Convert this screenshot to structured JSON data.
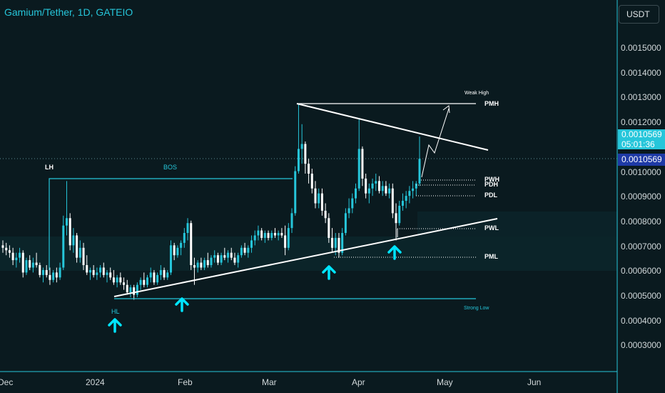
{
  "header": {
    "title": "Gamium/Tether, 1D, GATEIO",
    "currency": "USDT"
  },
  "price_axis": [
    "0.0015000",
    "0.0014000",
    "0.0013000",
    "0.0012000",
    "0.0010000",
    "0.0009000",
    "0.0008000",
    "0.0007000",
    "0.0006000",
    "0.0005000",
    "0.0004000",
    "0.0003000"
  ],
  "time_axis": [
    "Dec",
    "2024",
    "Feb",
    "Mar",
    "Apr",
    "May",
    "Jun"
  ],
  "badges": {
    "last_price": "0.0010569",
    "countdown": "05:01:36",
    "crosshair_price": "0.0010569"
  },
  "annotations": {
    "lh": "LH",
    "bos": "BOS",
    "hl": "HL",
    "weak_high": "Weak High",
    "pmh": "PMH",
    "pwh": "PWH",
    "pdh": "PDH",
    "pdl": "PDL",
    "pwl": "PWL",
    "pml": "PML",
    "strong_low": "Strong Low"
  },
  "colors": {
    "background": "#0a1a1f",
    "up": "#26c6da",
    "down": "#ffffff",
    "accent": "#26c6da",
    "arrow": "#00e5ff",
    "zone": "#0d2d32"
  },
  "chart_data": {
    "type": "candlestick",
    "symbol": "Gamium/Tether",
    "timeframe": "1D",
    "exchange": "GATEIO",
    "ylim": [
      0.00025,
      0.0016
    ],
    "x_range": [
      "2023-12-01",
      "2024-06-16"
    ],
    "last_price": 0.0010569,
    "levels": [
      {
        "label": "PMH",
        "value": 0.00128
      },
      {
        "label": "PWH",
        "value": 0.00098
      },
      {
        "label": "PDH",
        "value": 0.000965
      },
      {
        "label": "PDL",
        "value": 0.000905
      },
      {
        "label": "PWL",
        "value": 0.00078
      },
      {
        "label": "PML",
        "value": 0.00066
      },
      {
        "label": "Strong Low",
        "value": 0.00049
      },
      {
        "label": "LH",
        "value": 0.00097
      }
    ],
    "candles_ohlc": [
      [
        0.00071,
        0.00073,
        0.00068,
        0.0007
      ],
      [
        0.0007,
        0.00072,
        0.00067,
        0.00069
      ],
      [
        0.00069,
        0.00071,
        0.00066,
        0.00068
      ],
      [
        0.00068,
        0.0007,
        0.00063,
        0.00065
      ],
      [
        0.00065,
        0.00068,
        0.00062,
        0.00066
      ],
      [
        0.00066,
        0.0007,
        0.00064,
        0.00068
      ],
      [
        0.00068,
        0.00069,
        0.00058,
        0.0006
      ],
      [
        0.0006,
        0.00066,
        0.00059,
        0.00065
      ],
      [
        0.00065,
        0.00067,
        0.00061,
        0.00062
      ],
      [
        0.00062,
        0.00066,
        0.0006,
        0.00064
      ],
      [
        0.00064,
        0.00068,
        0.00062,
        0.00063
      ],
      [
        0.00063,
        0.00064,
        0.00058,
        0.00059
      ],
      [
        0.00059,
        0.00062,
        0.00056,
        0.00061
      ],
      [
        0.00061,
        0.00063,
        0.00058,
        0.00059
      ],
      [
        0.00059,
        0.00062,
        0.00055,
        0.00057
      ],
      [
        0.00057,
        0.00061,
        0.00056,
        0.0006
      ],
      [
        0.0006,
        0.00062,
        0.00056,
        0.00058
      ],
      [
        0.00058,
        0.00064,
        0.00057,
        0.00062
      ],
      [
        0.00062,
        0.00083,
        0.00061,
        0.00079
      ],
      [
        0.00079,
        0.00097,
        0.00075,
        0.00082
      ],
      [
        0.00082,
        0.00084,
        0.00069,
        0.00071
      ],
      [
        0.00071,
        0.00078,
        0.00068,
        0.00075
      ],
      [
        0.00075,
        0.00076,
        0.00064,
        0.00066
      ],
      [
        0.00066,
        0.00073,
        0.00064,
        0.0007
      ],
      [
        0.0007,
        0.00072,
        0.00061,
        0.00063
      ],
      [
        0.00063,
        0.00067,
        0.00059,
        0.0006
      ],
      [
        0.0006,
        0.00062,
        0.00057,
        0.00061
      ],
      [
        0.00061,
        0.00063,
        0.00058,
        0.00059
      ],
      [
        0.00059,
        0.00062,
        0.00057,
        0.0006
      ],
      [
        0.0006,
        0.00063,
        0.00058,
        0.00062
      ],
      [
        0.00062,
        0.00064,
        0.00058,
        0.00059
      ],
      [
        0.00059,
        0.00061,
        0.00056,
        0.0006
      ],
      [
        0.0006,
        0.00062,
        0.00057,
        0.00058
      ],
      [
        0.00058,
        0.00061,
        0.00055,
        0.00056
      ],
      [
        0.00056,
        0.00059,
        0.00054,
        0.00058
      ],
      [
        0.00058,
        0.0006,
        0.00055,
        0.00056
      ],
      [
        0.00056,
        0.00058,
        0.00053,
        0.00055
      ],
      [
        0.00055,
        0.00057,
        0.00051,
        0.00052
      ],
      [
        0.00052,
        0.00055,
        0.0005,
        0.00054
      ],
      [
        0.00054,
        0.00055,
        0.00049,
        0.00051
      ],
      [
        0.00051,
        0.00056,
        0.0005,
        0.00055
      ],
      [
        0.00055,
        0.00058,
        0.00053,
        0.00057
      ],
      [
        0.00057,
        0.0006,
        0.00054,
        0.00055
      ],
      [
        0.00055,
        0.00059,
        0.00054,
        0.00058
      ],
      [
        0.00058,
        0.00062,
        0.00056,
        0.0006
      ],
      [
        0.0006,
        0.00061,
        0.00055,
        0.00056
      ],
      [
        0.00056,
        0.0006,
        0.00055,
        0.00059
      ],
      [
        0.00059,
        0.00063,
        0.00057,
        0.00061
      ],
      [
        0.00061,
        0.00062,
        0.00057,
        0.00058
      ],
      [
        0.00058,
        0.00061,
        0.00057,
        0.0006
      ],
      [
        0.0006,
        0.00073,
        0.00059,
        0.00071
      ],
      [
        0.00071,
        0.00072,
        0.00065,
        0.00067
      ],
      [
        0.00067,
        0.00071,
        0.00066,
        0.0007
      ],
      [
        0.0007,
        0.00073,
        0.00067,
        0.00072
      ],
      [
        0.00072,
        0.00078,
        0.0007,
        0.00076
      ],
      [
        0.00076,
        0.00082,
        0.00073,
        0.0008
      ],
      [
        0.0008,
        0.00081,
        0.00061,
        0.00063
      ],
      [
        0.00063,
        0.00066,
        0.00055,
        0.00062
      ],
      [
        0.00062,
        0.00065,
        0.0006,
        0.00064
      ],
      [
        0.00064,
        0.00066,
        0.00061,
        0.00062
      ],
      [
        0.00062,
        0.00066,
        0.00061,
        0.00065
      ],
      [
        0.00065,
        0.00068,
        0.00062,
        0.00063
      ],
      [
        0.00063,
        0.00067,
        0.00062,
        0.00066
      ],
      [
        0.00066,
        0.00069,
        0.00064,
        0.00067
      ],
      [
        0.00067,
        0.00068,
        0.00063,
        0.00064
      ],
      [
        0.00064,
        0.00068,
        0.00063,
        0.00067
      ],
      [
        0.00067,
        0.0007,
        0.00065,
        0.00066
      ],
      [
        0.00066,
        0.00069,
        0.00064,
        0.00068
      ],
      [
        0.00068,
        0.0007,
        0.00065,
        0.00066
      ],
      [
        0.00066,
        0.00068,
        0.00063,
        0.00064
      ],
      [
        0.00064,
        0.00068,
        0.00062,
        0.00067
      ],
      [
        0.00067,
        0.00071,
        0.00066,
        0.0007
      ],
      [
        0.0007,
        0.00072,
        0.00067,
        0.00068
      ],
      [
        0.00068,
        0.00071,
        0.00066,
        0.0007
      ],
      [
        0.0007,
        0.00075,
        0.00068,
        0.00073
      ],
      [
        0.00073,
        0.00077,
        0.00071,
        0.00075
      ],
      [
        0.00075,
        0.00079,
        0.00073,
        0.00077
      ],
      [
        0.00077,
        0.00078,
        0.00073,
        0.00074
      ],
      [
        0.00074,
        0.00077,
        0.00072,
        0.00076
      ],
      [
        0.00076,
        0.00077,
        0.00073,
        0.00074
      ],
      [
        0.00074,
        0.00077,
        0.00073,
        0.00076
      ],
      [
        0.00076,
        0.00078,
        0.00074,
        0.00075
      ],
      [
        0.00075,
        0.00077,
        0.00073,
        0.00076
      ],
      [
        0.00076,
        0.00078,
        0.00074,
        0.00075
      ],
      [
        0.00075,
        0.00079,
        0.00067,
        0.0007
      ],
      [
        0.0007,
        0.0008,
        0.00069,
        0.00078
      ],
      [
        0.00078,
        0.00086,
        0.00076,
        0.00084
      ],
      [
        0.00084,
        0.00103,
        0.00083,
        0.00101
      ],
      [
        0.00101,
        0.00128,
        0.001,
        0.0011
      ],
      [
        0.0011,
        0.0012,
        0.00104,
        0.00112
      ],
      [
        0.00112,
        0.00113,
        0.001,
        0.00104
      ],
      [
        0.00104,
        0.00106,
        0.00096,
        0.001
      ],
      [
        0.001,
        0.00102,
        0.00092,
        0.00094
      ],
      [
        0.00094,
        0.00097,
        0.00086,
        0.00088
      ],
      [
        0.00088,
        0.00094,
        0.00086,
        0.00092
      ],
      [
        0.00092,
        0.00094,
        0.00083,
        0.00085
      ],
      [
        0.00085,
        0.00088,
        0.0008,
        0.00082
      ],
      [
        0.00082,
        0.00084,
        0.00072,
        0.00074
      ],
      [
        0.00074,
        0.00078,
        0.00068,
        0.0007
      ],
      [
        0.0007,
        0.00076,
        0.00067,
        0.00074
      ],
      [
        0.00074,
        0.00076,
        0.00066,
        0.00068
      ],
      [
        0.00068,
        0.00078,
        0.00067,
        0.00076
      ],
      [
        0.00076,
        0.00086,
        0.00075,
        0.00084
      ],
      [
        0.00084,
        0.0009,
        0.00082,
        0.00086
      ],
      [
        0.00086,
        0.00092,
        0.00084,
        0.0009
      ],
      [
        0.0009,
        0.00096,
        0.00088,
        0.00094
      ],
      [
        0.00094,
        0.00122,
        0.00093,
        0.0011
      ],
      [
        0.0011,
        0.00111,
        0.00095,
        0.00098
      ],
      [
        0.00098,
        0.001,
        0.0009,
        0.00092
      ],
      [
        0.00092,
        0.00096,
        0.00088,
        0.00094
      ],
      [
        0.00094,
        0.00098,
        0.00091,
        0.00096
      ],
      [
        0.00096,
        0.001,
        0.00093,
        0.00097
      ],
      [
        0.00097,
        0.00099,
        0.00092,
        0.00093
      ],
      [
        0.00093,
        0.00097,
        0.00091,
        0.00095
      ],
      [
        0.00095,
        0.00097,
        0.00091,
        0.00092
      ],
      [
        0.00092,
        0.00096,
        0.0009,
        0.00094
      ],
      [
        0.00094,
        0.00096,
        0.00082,
        0.00084
      ],
      [
        0.00084,
        0.00088,
        0.00073,
        0.0008
      ],
      [
        0.0008,
        0.00089,
        0.00079,
        0.00087
      ],
      [
        0.00087,
        0.00092,
        0.00085,
        0.00089
      ],
      [
        0.00089,
        0.00093,
        0.00086,
        0.00091
      ],
      [
        0.00091,
        0.00095,
        0.00088,
        0.00093
      ],
      [
        0.00093,
        0.00097,
        0.0009,
        0.00094
      ],
      [
        0.00094,
        0.00097,
        0.00091,
        0.00096
      ],
      [
        0.00096,
        0.00115,
        0.00095,
        0.00106
      ]
    ]
  }
}
